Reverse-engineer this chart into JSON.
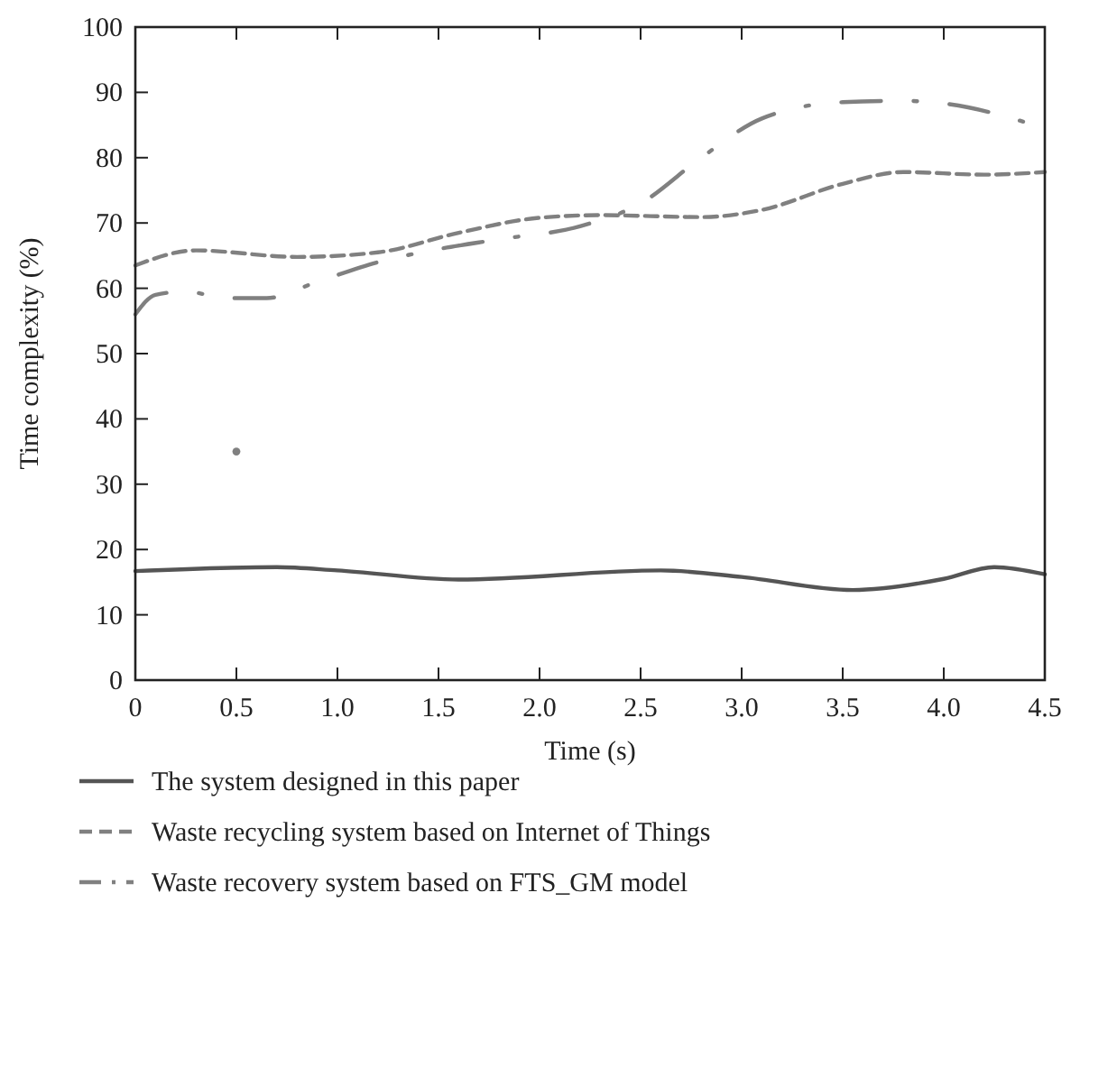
{
  "chart_data": {
    "type": "line",
    "xlabel": "Time (s)",
    "ylabel": "Time complexity (%)",
    "xlim": [
      0,
      4.5
    ],
    "ylim": [
      0,
      100
    ],
    "xticks": [
      0,
      {
        "value": 0.5,
        "label": "0.5"
      },
      {
        "value": 1,
        "label": "1.0"
      },
      {
        "value": 1.5,
        "label": "1.5"
      },
      {
        "value": 2,
        "label": "2.0"
      },
      {
        "value": 2.5,
        "label": "2.5"
      },
      {
        "value": 3,
        "label": "3.0"
      },
      {
        "value": 3.5,
        "label": "3.5"
      },
      {
        "value": 4,
        "label": "4.0"
      },
      {
        "value": 4.5,
        "label": "4.5"
      }
    ],
    "yticks": [
      0,
      10,
      20,
      30,
      40,
      50,
      60,
      70,
      80,
      90,
      100
    ],
    "grid": false,
    "legend": "bottom",
    "series": [
      {
        "name": "The system designed in this paper",
        "color": "#555555",
        "line_style": "solid",
        "x": [
          0,
          0.7,
          1.0,
          1.6,
          2.6,
          3.0,
          3.55,
          4.0,
          4.25,
          4.5
        ],
        "values": [
          16.7,
          17.3,
          16.8,
          15.4,
          16.8,
          15.8,
          13.8,
          15.5,
          17.3,
          16.2
        ]
      },
      {
        "name": "Waste recycling system based on Internet of Things",
        "color": "#808080",
        "line_style": "dashed",
        "x": [
          0,
          0.3,
          0.8,
          1.2,
          1.6,
          2.0,
          2.3,
          2.8,
          3.1,
          3.5,
          3.8,
          4.2,
          4.5
        ],
        "values": [
          63.5,
          65.8,
          64.8,
          65.5,
          68.5,
          70.8,
          71.2,
          70.9,
          72,
          76,
          77.8,
          77.4,
          77.8
        ]
      },
      {
        "name": "Waste recovery system based on FTS_GM model",
        "color": "#808080",
        "line_style": "dashdot",
        "x": [
          0,
          0.1,
          0.25,
          0.45,
          0.65,
          0.9,
          1.2,
          1.5,
          1.8,
          2.2,
          2.5,
          2.8,
          3.1,
          3.5,
          3.8,
          4.0,
          4.5
        ],
        "values": [
          56,
          59,
          59.5,
          58.5,
          58.5,
          61,
          64,
          66,
          67.5,
          69.5,
          73,
          80,
          86,
          88.5,
          88.7,
          88.3,
          84.5
        ]
      },
      {
        "type": "scatter",
        "marker": "circle",
        "color": "#808080",
        "x": [
          0.5
        ],
        "values": [
          35
        ]
      }
    ]
  }
}
